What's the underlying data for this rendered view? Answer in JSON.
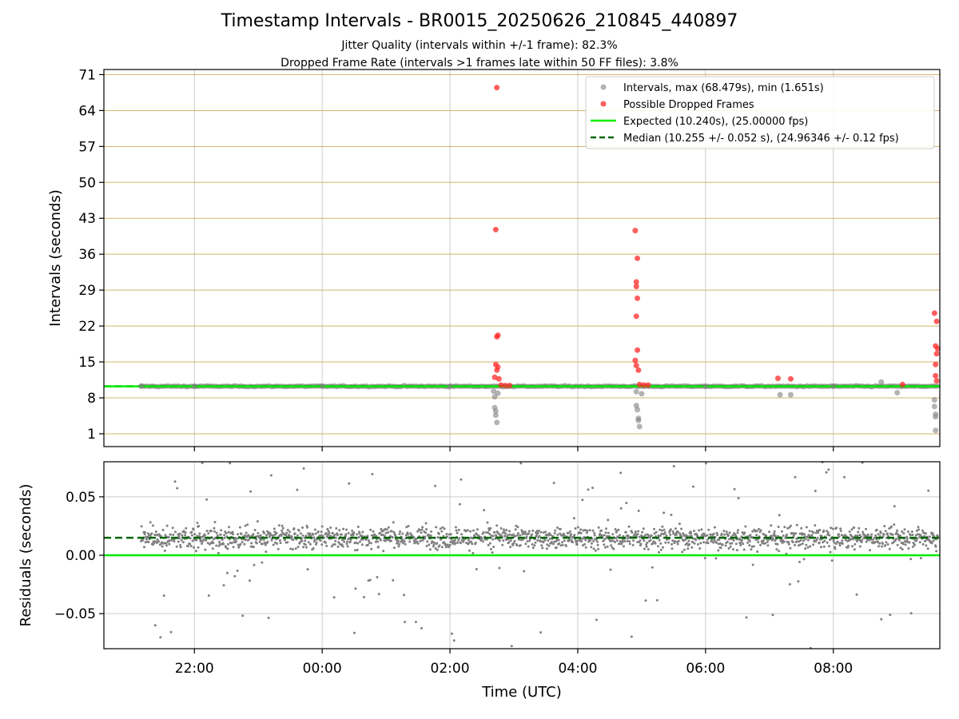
{
  "title": "Timestamp Intervals - BR0015_20250626_210845_440897",
  "subtitle1": "Jitter Quality (intervals within +/-1 frame): 82.3%",
  "subtitle2": "Dropped Frame Rate (intervals >1 frames late within 50 FF files): 3.8%",
  "colors": {
    "intervals": "#808080",
    "dropped": "#ff2a2a",
    "expected": "#00ee00",
    "median": "#006400",
    "hgrid": "#d4b36a",
    "vgrid": "#cccccc"
  },
  "chart_data": [
    {
      "type": "scatter",
      "ylabel": "Intervals (seconds)",
      "xlabel": "",
      "xlim": [
        "2025-06-26T20:35",
        "2025-06-27T09:40"
      ],
      "ylim": [
        -1.5,
        72
      ],
      "yticks": [
        1,
        8,
        15,
        22,
        29,
        36,
        43,
        50,
        57,
        64,
        71
      ],
      "grid": true,
      "legend_position": "top-right",
      "legend": [
        "Intervals, max (68.479s), min (1.651s)",
        "Possible Dropped Frames",
        "Expected (10.240s), (25.00000 fps)",
        "Median (10.255 +/- 0.052 s), (24.96346 +/- 0.12 fps)"
      ],
      "series": [
        {
          "name": "Intervals, max (68.479s), min (1.651s)",
          "points": [
            [
              "2025-06-26T21:10",
              10.25
            ],
            [
              "2025-06-26T22:00",
              10.26
            ],
            [
              "2025-06-27T00:00",
              10.25
            ],
            [
              "2025-06-27T02:00",
              10.26
            ],
            [
              "2025-06-27T02:41",
              9.3
            ],
            [
              "2025-06-27T02:42",
              8.2
            ],
            [
              "2025-06-27T02:42",
              6.1
            ],
            [
              "2025-06-27T02:43",
              5.4
            ],
            [
              "2025-06-27T02:43",
              4.6
            ],
            [
              "2025-06-27T02:44",
              3.2
            ],
            [
              "2025-06-27T02:45",
              8.9
            ],
            [
              "2025-06-27T04:55",
              9.2
            ],
            [
              "2025-06-27T04:55",
              6.5
            ],
            [
              "2025-06-27T04:56",
              5.7
            ],
            [
              "2025-06-27T04:57",
              4.0
            ],
            [
              "2025-06-27T04:57",
              3.6
            ],
            [
              "2025-06-27T04:58",
              2.4
            ],
            [
              "2025-06-27T05:00",
              8.8
            ],
            [
              "2025-06-27T06:00",
              10.25
            ],
            [
              "2025-06-27T07:10",
              8.6
            ],
            [
              "2025-06-27T07:20",
              8.6
            ],
            [
              "2025-06-27T08:00",
              10.26
            ],
            [
              "2025-06-27T08:45",
              11.1
            ],
            [
              "2025-06-27T09:00",
              9.0
            ],
            [
              "2025-06-27T09:35",
              7.6
            ],
            [
              "2025-06-27T09:35",
              6.3
            ],
            [
              "2025-06-27T09:36",
              4.8
            ],
            [
              "2025-06-27T09:36",
              4.3
            ],
            [
              "2025-06-27T09:36",
              1.651
            ]
          ]
        },
        {
          "name": "Possible Dropped Frames",
          "points": [
            [
              "2025-06-27T02:44",
              68.479
            ],
            [
              "2025-06-27T02:43",
              40.8
            ],
            [
              "2025-06-27T02:44",
              19.9
            ],
            [
              "2025-06-27T02:45",
              20.2
            ],
            [
              "2025-06-27T02:43",
              14.5
            ],
            [
              "2025-06-27T02:45",
              14.0
            ],
            [
              "2025-06-27T02:44",
              13.4
            ],
            [
              "2025-06-27T02:42",
              12.0
            ],
            [
              "2025-06-27T02:46",
              11.7
            ],
            [
              "2025-06-27T02:48",
              10.5
            ],
            [
              "2025-06-27T02:52",
              10.4
            ],
            [
              "2025-06-27T02:56",
              10.4
            ],
            [
              "2025-06-27T04:54",
              40.6
            ],
            [
              "2025-06-27T04:56",
              35.2
            ],
            [
              "2025-06-27T04:55",
              30.6
            ],
            [
              "2025-06-27T04:55",
              29.7
            ],
            [
              "2025-06-27T04:56",
              27.4
            ],
            [
              "2025-06-27T04:55",
              23.9
            ],
            [
              "2025-06-27T04:56",
              17.3
            ],
            [
              "2025-06-27T04:54",
              15.3
            ],
            [
              "2025-06-27T04:55",
              14.3
            ],
            [
              "2025-06-27T04:57",
              13.4
            ],
            [
              "2025-06-27T04:58",
              10.6
            ],
            [
              "2025-06-27T05:02",
              10.5
            ],
            [
              "2025-06-27T05:06",
              10.5
            ],
            [
              "2025-06-27T07:08",
              11.8
            ],
            [
              "2025-06-27T07:20",
              11.7
            ],
            [
              "2025-06-27T09:05",
              10.6
            ],
            [
              "2025-06-27T09:35",
              24.5
            ],
            [
              "2025-06-27T09:37",
              22.9
            ],
            [
              "2025-06-27T09:36",
              18.1
            ],
            [
              "2025-06-27T09:38",
              17.6
            ],
            [
              "2025-06-27T09:37",
              16.6
            ],
            [
              "2025-06-27T09:36",
              14.5
            ],
            [
              "2025-06-27T09:36",
              12.3
            ],
            [
              "2025-06-27T09:37",
              11.3
            ]
          ]
        },
        {
          "name": "Expected (10.240s), (25.00000 fps)",
          "y": 10.24
        },
        {
          "name": "Median (10.255 +/- 0.052 s), (24.96346 +/- 0.12 fps)",
          "y": 10.255
        }
      ]
    },
    {
      "type": "scatter",
      "xlabel": "Time (UTC)",
      "ylabel": "Residuals (seconds)",
      "xticks": [
        "22:00",
        "00:00",
        "02:00",
        "04:00",
        "06:00",
        "08:00"
      ],
      "yticks": [
        "0.05",
        "0.00",
        "−0.05"
      ],
      "ylim": [
        -0.08,
        0.08
      ],
      "grid": true,
      "expected_line": 0.0,
      "median_line": 0.015,
      "residual_band": {
        "center": 0.015,
        "spread": 0.018,
        "range_start": "2025-06-26T21:10",
        "range_end": "2025-06-27T09:38"
      }
    }
  ]
}
